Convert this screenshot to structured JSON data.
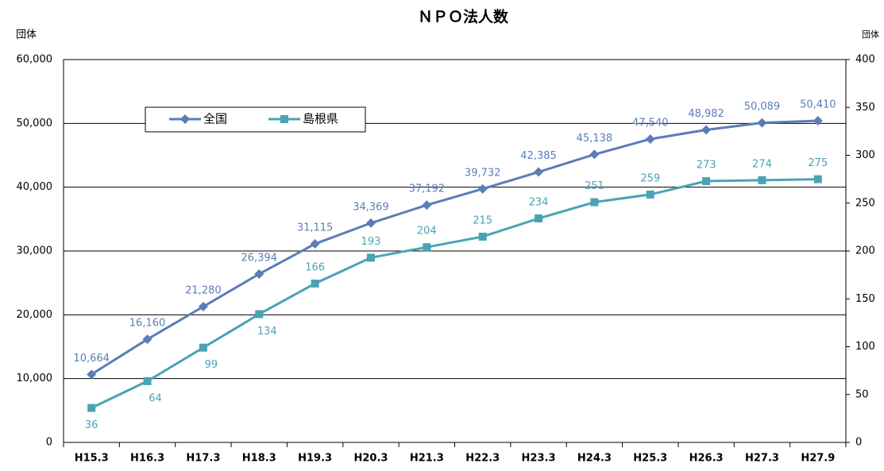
{
  "chart_data": {
    "type": "line",
    "title": "ＮＰＯ法人数",
    "y_label": "団体",
    "y2_label": "団体",
    "categories": [
      "H15.3",
      "H16.3",
      "H17.3",
      "H18.3",
      "H19.3",
      "H20.3",
      "H21.3",
      "H22.3",
      "H23.3",
      "H24.3",
      "H25.3",
      "H26.3",
      "H27.3",
      "H27.9"
    ],
    "series": [
      {
        "name": "全国",
        "color": "#5a7db8",
        "values": [
          10664,
          16160,
          21280,
          26394,
          31115,
          34369,
          37192,
          39732,
          42385,
          45138,
          47540,
          48982,
          50089,
          50410
        ],
        "value_labels": [
          "10,664",
          "16,160",
          "21,280",
          "26,394",
          "31,115",
          "34,369",
          "37,192",
          "39,732",
          "42,385",
          "45,138",
          "47,540",
          "48,982",
          "50,089",
          "50,410"
        ]
      },
      {
        "name": "島根県",
        "color": "#4aa3b5",
        "axis": "y2",
        "values": [
          36,
          64,
          99,
          134,
          166,
          193,
          204,
          215,
          234,
          251,
          259,
          273,
          274,
          275
        ]
      }
    ],
    "ylim": [
      0,
      60000
    ],
    "yticks": [
      0,
      {
        "value": 10000,
        "label": "10,000"
      },
      {
        "value": 20000,
        "label": "20,000"
      },
      {
        "value": 30000,
        "label": "30,000"
      },
      {
        "value": 40000,
        "label": "40,000"
      },
      {
        "value": 50000,
        "label": "50,000"
      },
      {
        "value": 60000,
        "label": "60,000"
      }
    ],
    "y2lim": [
      0,
      400
    ],
    "y2ticks": [
      0,
      50,
      100,
      150,
      200,
      250,
      300,
      350,
      400
    ],
    "grid": true,
    "legend": "top-left"
  }
}
